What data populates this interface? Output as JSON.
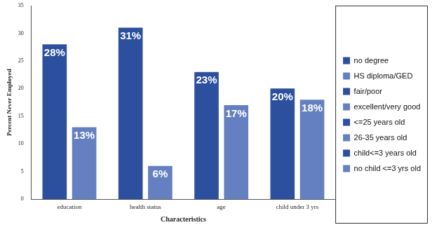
{
  "chart_data": {
    "type": "bar",
    "x_label": "Characteristics",
    "y_label": "Percent Never Employed",
    "categories": [
      "education",
      "health status",
      "age",
      "child under 3 yrs"
    ],
    "series": [
      {
        "name": "no degree",
        "color": "#2c4f9e",
        "values": [
          28,
          null,
          null,
          null
        ],
        "value_labels": [
          "28%",
          null,
          null,
          null
        ]
      },
      {
        "name": "HS diploma/GED",
        "color": "#6580c0",
        "values": [
          13,
          null,
          null,
          null
        ],
        "value_labels": [
          "13%",
          null,
          null,
          null
        ]
      },
      {
        "name": "fair/poor",
        "color": "#2c4f9e",
        "values": [
          null,
          31,
          null,
          null
        ],
        "value_labels": [
          null,
          "31%",
          null,
          null
        ]
      },
      {
        "name": "excellent/very good",
        "color": "#6580c0",
        "values": [
          null,
          6,
          null,
          null
        ],
        "value_labels": [
          null,
          "6%",
          null,
          null
        ]
      },
      {
        "name": "<=25 years old",
        "color": "#2c4f9e",
        "values": [
          null,
          null,
          23,
          null
        ],
        "value_labels": [
          null,
          null,
          "23%",
          null
        ]
      },
      {
        "name": "26-35 years old",
        "color": "#6580c0",
        "values": [
          null,
          null,
          17,
          null
        ],
        "value_labels": [
          null,
          null,
          "17%",
          null
        ]
      },
      {
        "name": "child<=3 years old",
        "color": "#2c4f9e",
        "values": [
          null,
          null,
          null,
          20
        ],
        "value_labels": [
          null,
          null,
          null,
          "20%"
        ]
      },
      {
        "name": "no child <=3 yrs old",
        "color": "#6580c0",
        "values": [
          null,
          null,
          null,
          18
        ],
        "value_labels": [
          null,
          null,
          null,
          "18%"
        ]
      }
    ],
    "ylim": [
      0,
      35
    ],
    "yticks": [
      0,
      5,
      10,
      15,
      20,
      25,
      30,
      35
    ],
    "grid": false,
    "legend": "right",
    "data_labels": true
  }
}
